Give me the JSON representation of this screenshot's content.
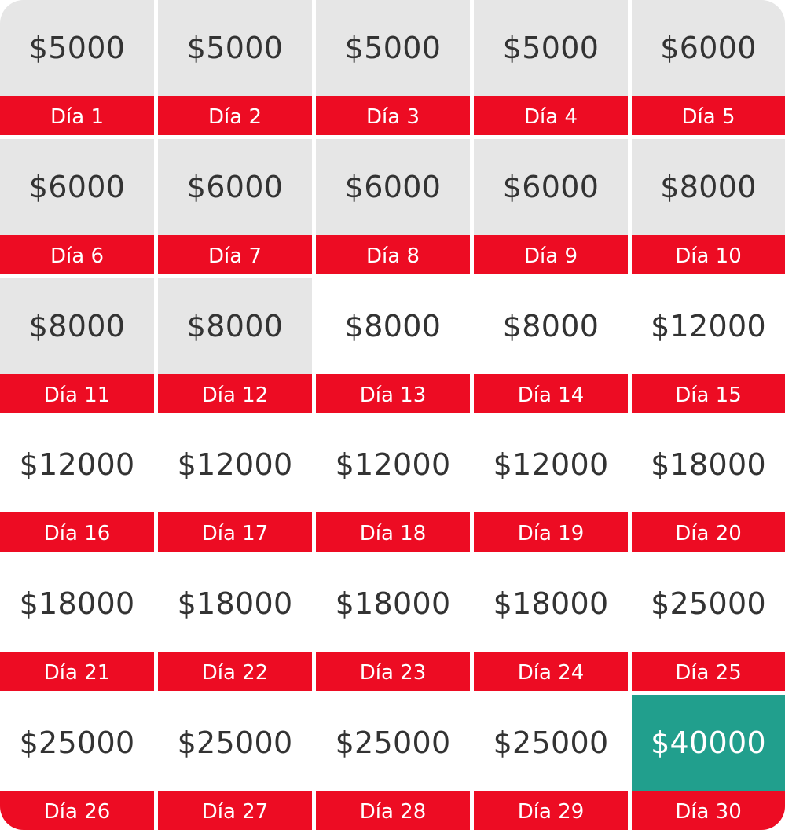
{
  "colors": {
    "completed_fill": "#e6e6e6",
    "pending_fill": "#ffffff",
    "goal_fill": "#219f8d",
    "label_fill": "#ed0c23",
    "amount_text": "#333333",
    "label_text": "#ffffff"
  },
  "days": [
    {
      "amount": "$5000",
      "label": "Día 1",
      "status": "done"
    },
    {
      "amount": "$5000",
      "label": "Día 2",
      "status": "done"
    },
    {
      "amount": "$5000",
      "label": "Día 3",
      "status": "done"
    },
    {
      "amount": "$5000",
      "label": "Día 4",
      "status": "done"
    },
    {
      "amount": "$6000",
      "label": "Día 5",
      "status": "done"
    },
    {
      "amount": "$6000",
      "label": "Día 6",
      "status": "done"
    },
    {
      "amount": "$6000",
      "label": "Día 7",
      "status": "done"
    },
    {
      "amount": "$6000",
      "label": "Día 8",
      "status": "done"
    },
    {
      "amount": "$6000",
      "label": "Día 9",
      "status": "done"
    },
    {
      "amount": "$8000",
      "label": "Día 10",
      "status": "done"
    },
    {
      "amount": "$8000",
      "label": "Día 11",
      "status": "done"
    },
    {
      "amount": "$8000",
      "label": "Día 12",
      "status": "done"
    },
    {
      "amount": "$8000",
      "label": "Día 13",
      "status": "pending"
    },
    {
      "amount": "$8000",
      "label": "Día 14",
      "status": "pending"
    },
    {
      "amount": "$12000",
      "label": "Día 15",
      "status": "pending"
    },
    {
      "amount": "$12000",
      "label": "Día 16",
      "status": "pending"
    },
    {
      "amount": "$12000",
      "label": "Día 17",
      "status": "pending"
    },
    {
      "amount": "$12000",
      "label": "Día 18",
      "status": "pending"
    },
    {
      "amount": "$12000",
      "label": "Día 19",
      "status": "pending"
    },
    {
      "amount": "$18000",
      "label": "Día 20",
      "status": "pending"
    },
    {
      "amount": "$18000",
      "label": "Día 21",
      "status": "pending"
    },
    {
      "amount": "$18000",
      "label": "Día 22",
      "status": "pending"
    },
    {
      "amount": "$18000",
      "label": "Día 23",
      "status": "pending"
    },
    {
      "amount": "$18000",
      "label": "Día 24",
      "status": "pending"
    },
    {
      "amount": "$25000",
      "label": "Día 25",
      "status": "pending"
    },
    {
      "amount": "$25000",
      "label": "Día 26",
      "status": "pending"
    },
    {
      "amount": "$25000",
      "label": "Día 27",
      "status": "pending"
    },
    {
      "amount": "$25000",
      "label": "Día 28",
      "status": "pending"
    },
    {
      "amount": "$25000",
      "label": "Día 29",
      "status": "pending"
    },
    {
      "amount": "$40000",
      "label": "Día 30",
      "status": "goal"
    }
  ]
}
